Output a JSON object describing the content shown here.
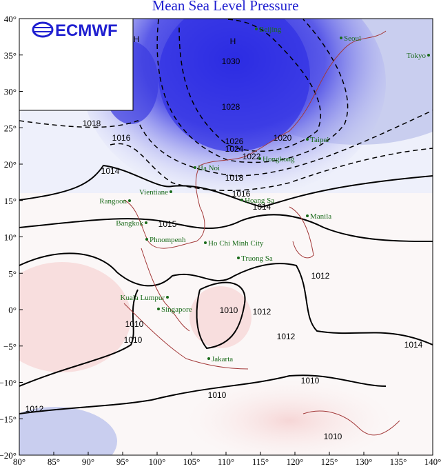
{
  "title": "Mean Sea Level Pressure",
  "logo": "ECMWF",
  "x_axis": {
    "ticks": [
      "80°",
      "85°",
      "90°",
      "95°",
      "100°",
      "105°",
      "110°",
      "115°",
      "120°",
      "125°",
      "130°",
      "135°",
      "140°"
    ]
  },
  "y_axis": {
    "ticks": [
      "40°",
      "35°",
      "30°",
      "25°",
      "20°",
      "15°",
      "10°",
      "5°",
      "0°",
      "−5°",
      "−10°",
      "−15°",
      "−20°"
    ]
  },
  "cities": [
    "Beijing",
    "Seoul",
    "Tokyo",
    "Taipei",
    "Hongkong",
    "Ha Noi",
    "Vientiane",
    "Rangoon",
    "Bangkok",
    "Phnompenh",
    "Ho Chi Minh City",
    "Truong Sa",
    "Hoang Sa",
    "Manila",
    "Kuala Lumpur",
    "Singapore",
    "Jakarta"
  ],
  "contour_labels": [
    "H",
    "H",
    "1030",
    "1028",
    "1026",
    "1024",
    "1022",
    "1020",
    "1018",
    "1016",
    "1014",
    "1018",
    "1016",
    "1014",
    "1015",
    "1012",
    "1012",
    "1010",
    "1010",
    "1010",
    "1012",
    "1014",
    "1010",
    "1010",
    "1012",
    "1010"
  ]
}
